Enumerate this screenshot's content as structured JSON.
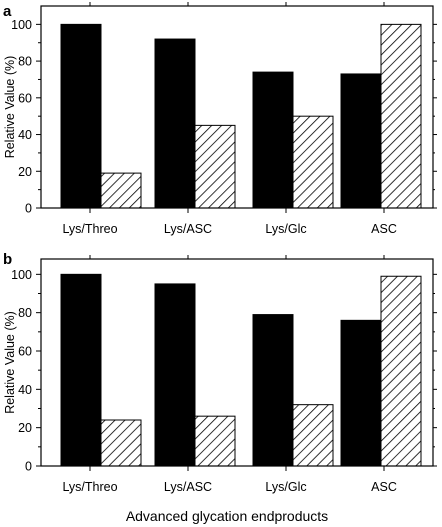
{
  "figure": {
    "xlabel": "Advanced glycation endproducts",
    "colors": {
      "solid": "#000000",
      "hatched_fill": "#ffffff",
      "hatch_line": "#000000"
    }
  },
  "chart_data": [
    {
      "type": "bar",
      "panel": "a",
      "categories": [
        "Lys/Threo",
        "Lys/ASC",
        "Lys/Glc",
        "ASC"
      ],
      "series": [
        {
          "values": [
            100,
            92,
            74,
            73
          ],
          "pattern": "solid"
        },
        {
          "values": [
            19,
            45,
            50,
            100
          ],
          "pattern": "hatched"
        }
      ],
      "ylabel": "Relative Value (%)",
      "ylim": [
        0,
        110
      ],
      "yticks": [
        "0",
        "20",
        "40",
        "60",
        "80",
        "100"
      ],
      "grid": false,
      "legend": "none"
    },
    {
      "type": "bar",
      "panel": "b",
      "categories": [
        "Lys/Threo",
        "Lys/ASC",
        "Lys/Glc",
        "ASC"
      ],
      "series": [
        {
          "values": [
            100,
            95,
            79,
            76
          ],
          "pattern": "solid"
        },
        {
          "values": [
            24,
            26,
            32,
            99
          ],
          "pattern": "hatched"
        }
      ],
      "ylabel": "Relative Value (%)",
      "ylim": [
        0,
        108
      ],
      "yticks": [
        "0",
        "20",
        "40",
        "60",
        "80",
        "100"
      ],
      "grid": false,
      "legend": "none"
    }
  ]
}
